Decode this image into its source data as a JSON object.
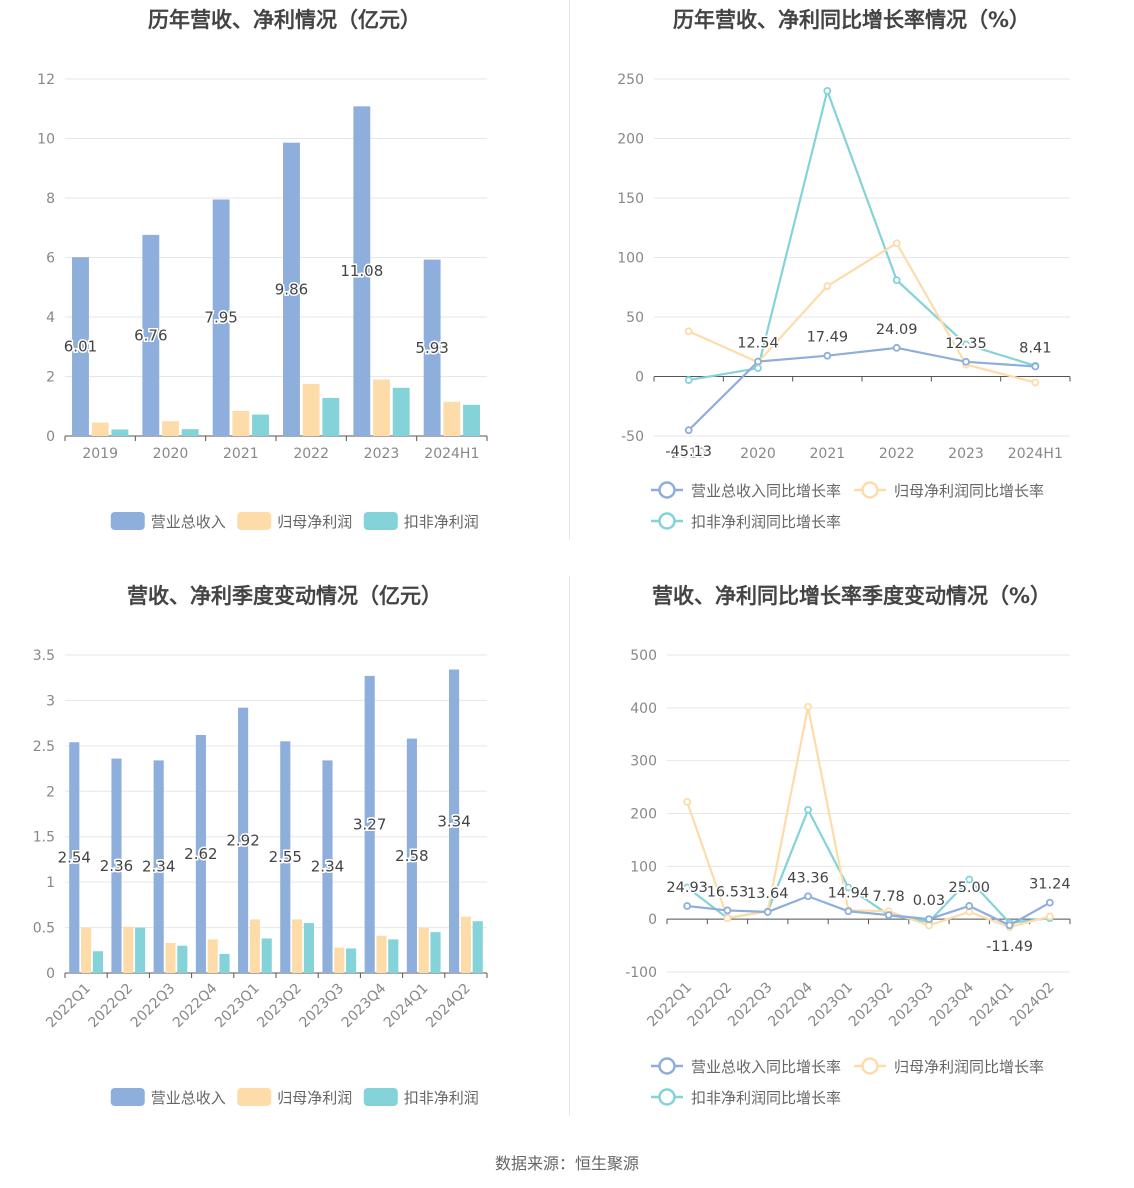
{
  "source": "数据来源：恒生聚源",
  "colors": {
    "revenue": "#8eaedb",
    "net_profit": "#fedca9",
    "deducted_profit": "#83d3d8",
    "grid": "#e6e6ee",
    "axis_text": "#888888",
    "label_text": "#444444",
    "title_text": "#444444"
  },
  "chart_data": [
    {
      "type": "bar",
      "title": "历年营收、净利情况（亿元）",
      "categories": [
        "2019",
        "2020",
        "2021",
        "2022",
        "2023",
        "2024H1"
      ],
      "ylim": [
        0,
        12
      ],
      "yticks": [
        "0",
        "2",
        "4",
        "6",
        "8",
        "10",
        "12"
      ],
      "series": [
        {
          "name": "营业总收入",
          "values": [
            6.01,
            6.76,
            7.95,
            9.86,
            11.08,
            5.93
          ],
          "labels": [
            "6.01",
            "6.76",
            "7.95",
            "9.86",
            "11.08",
            "5.93"
          ]
        },
        {
          "name": "归母净利润",
          "values": [
            0.45,
            0.5,
            0.84,
            1.75,
            1.9,
            1.15
          ]
        },
        {
          "name": "扣非净利润",
          "values": [
            0.22,
            0.23,
            0.72,
            1.28,
            1.62,
            1.05
          ]
        }
      ],
      "legend": "bottom"
    },
    {
      "type": "line",
      "title": "历年营收、净利同比增长率情况（%）",
      "categories": [
        "2019",
        "2020",
        "2021",
        "2022",
        "2023",
        "2024H1"
      ],
      "ylim": [
        -50,
        250
      ],
      "yticks": [
        "-50",
        "0",
        "50",
        "100",
        "150",
        "200",
        "250"
      ],
      "series": [
        {
          "name": "营业总收入同比增长率",
          "values": [
            -45.13,
            12.54,
            17.49,
            24.09,
            12.35,
            8.41
          ],
          "labels": [
            "-45.13",
            "12.54",
            "17.49",
            "24.09",
            "12.35",
            "8.41"
          ]
        },
        {
          "name": "归母净利润同比增长率",
          "values": [
            38,
            12,
            76,
            112,
            10,
            -5
          ]
        },
        {
          "name": "扣非净利润同比增长率",
          "values": [
            -3,
            7,
            240,
            81,
            27,
            9
          ]
        }
      ],
      "legend": "bottom"
    },
    {
      "type": "bar",
      "title": "营收、净利季度变动情况（亿元）",
      "categories": [
        "2022Q1",
        "2022Q2",
        "2022Q3",
        "2022Q4",
        "2023Q1",
        "2023Q2",
        "2023Q3",
        "2023Q4",
        "2024Q1",
        "2024Q2"
      ],
      "ylim": [
        0,
        3.5
      ],
      "yticks": [
        "0",
        "0.5",
        "1",
        "1.5",
        "2",
        "2.5",
        "3",
        "3.5"
      ],
      "series": [
        {
          "name": "营业总收入",
          "values": [
            2.54,
            2.36,
            2.34,
            2.62,
            2.92,
            2.55,
            2.34,
            3.27,
            2.58,
            3.34
          ],
          "labels": [
            "2.54",
            "2.36",
            "2.34",
            "2.62",
            "2.92",
            "2.55",
            "2.34",
            "3.27",
            "2.58",
            "3.34"
          ]
        },
        {
          "name": "归母净利润",
          "values": [
            0.5,
            0.51,
            0.33,
            0.37,
            0.59,
            0.59,
            0.28,
            0.41,
            0.5,
            0.62
          ]
        },
        {
          "name": "扣非净利润",
          "values": [
            0.24,
            0.5,
            0.3,
            0.21,
            0.38,
            0.55,
            0.27,
            0.37,
            0.45,
            0.57
          ]
        }
      ],
      "legend": "bottom"
    },
    {
      "type": "line",
      "title": "营收、净利同比增长率季度变动情况（%）",
      "categories": [
        "2022Q1",
        "2022Q2",
        "2022Q3",
        "2022Q4",
        "2023Q1",
        "2023Q2",
        "2023Q3",
        "2023Q4",
        "2024Q1",
        "2024Q2"
      ],
      "ylim": [
        -100,
        500
      ],
      "yticks": [
        "-100",
        "0",
        "100",
        "200",
        "300",
        "400",
        "500"
      ],
      "series": [
        {
          "name": "营业总收入同比增长率",
          "values": [
            24.93,
            16.53,
            13.64,
            43.36,
            14.94,
            7.78,
            0.03,
            25.0,
            -11.49,
            31.24
          ],
          "labels": [
            "24.93",
            "16.53",
            "13.64",
            "43.36",
            "14.94",
            "7.78",
            "0.03",
            "25.00",
            "-11.49",
            "31.24"
          ]
        },
        {
          "name": "归母净利润同比增长率",
          "values": [
            222,
            2,
            15,
            402,
            17,
            15,
            -12,
            14,
            -15,
            5
          ]
        },
        {
          "name": "扣非净利润同比增长率",
          "values": [
            60,
            2,
            15,
            207,
            60,
            8,
            -5,
            75,
            -7,
            2
          ]
        }
      ],
      "legend": "bottom"
    }
  ]
}
